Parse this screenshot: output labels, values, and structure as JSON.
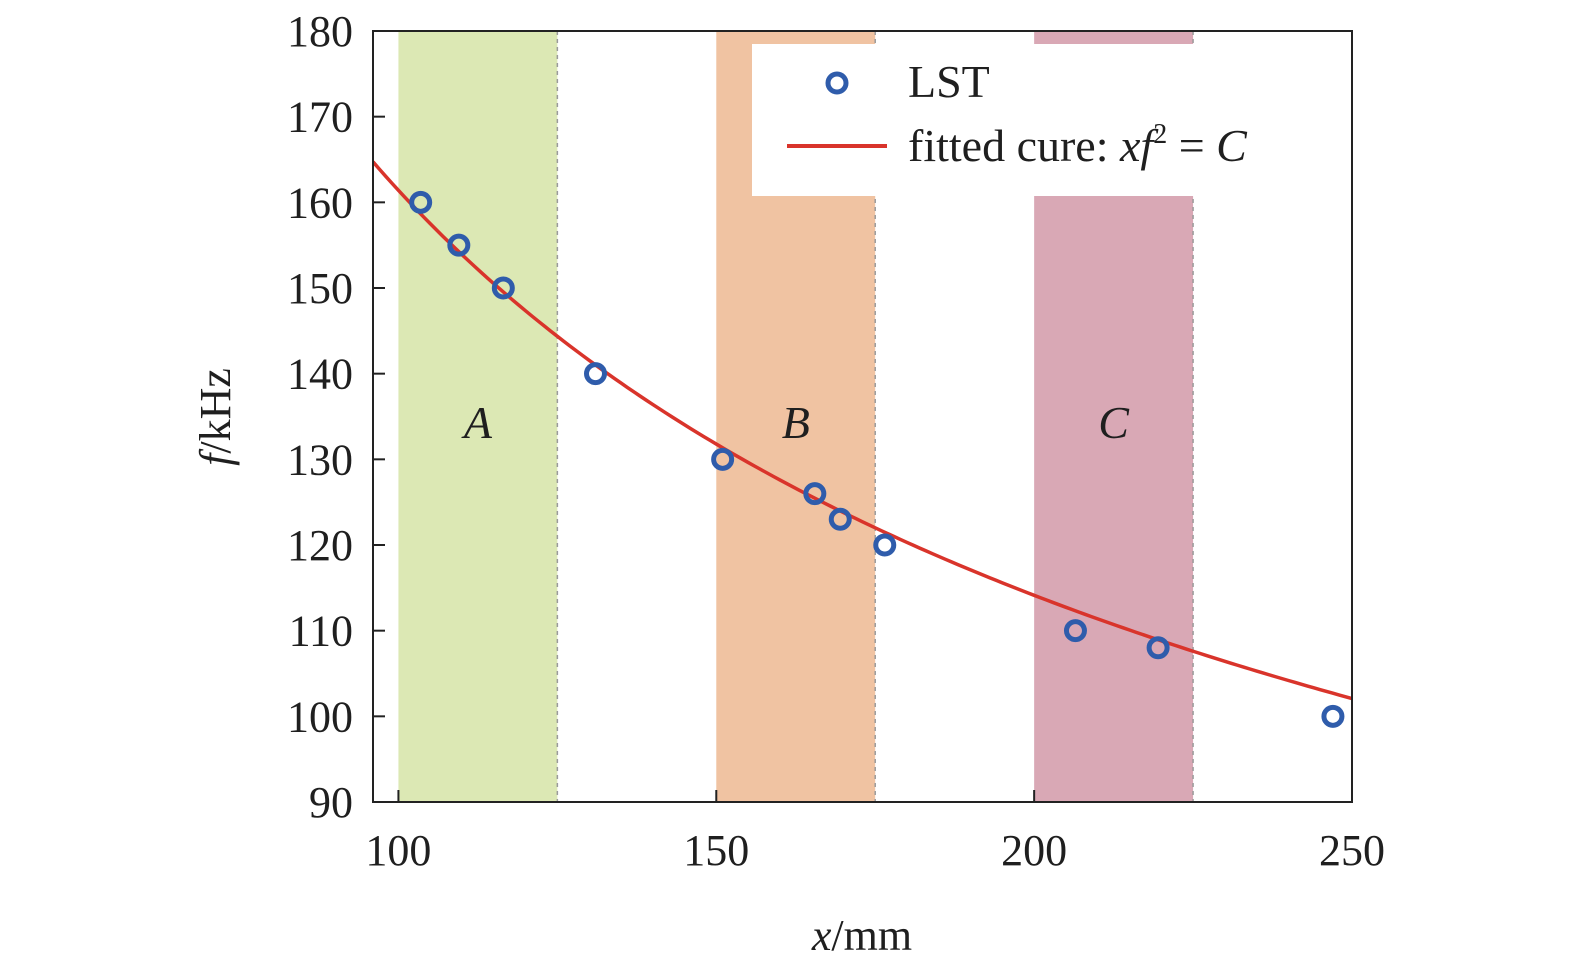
{
  "chart_data": {
    "type": "scatter",
    "xlabel_var": "x",
    "xlabel_unit": "/mm",
    "ylabel_var": "f",
    "ylabel_unit": "/kHz",
    "xlim": [
      96,
      250
    ],
    "ylim": [
      90,
      180
    ],
    "x_ticks": [
      100,
      150,
      200,
      250
    ],
    "y_ticks": [
      90,
      100,
      110,
      120,
      130,
      140,
      150,
      160,
      170,
      180
    ],
    "grid": false,
    "legend_position": "top-right",
    "series": [
      {
        "name": "LST",
        "kind": "scatter",
        "marker": "hollow-circle",
        "color": "#2f5cab",
        "points": [
          {
            "x": 103.5,
            "y": 160
          },
          {
            "x": 109.5,
            "y": 155
          },
          {
            "x": 116.5,
            "y": 150
          },
          {
            "x": 131,
            "y": 140
          },
          {
            "x": 151,
            "y": 130
          },
          {
            "x": 165.5,
            "y": 126
          },
          {
            "x": 169.5,
            "y": 123
          },
          {
            "x": 176.5,
            "y": 120
          },
          {
            "x": 206.5,
            "y": 110
          },
          {
            "x": 219.5,
            "y": 108
          },
          {
            "x": 247,
            "y": 100
          }
        ]
      },
      {
        "name_prefix": "fitted cure: ",
        "name_var1": "xf",
        "name_sup": "2",
        "name_eq": " = ",
        "name_var2": "C",
        "kind": "line",
        "color": "#d9342b",
        "model": "x*f^2 = C",
        "C": 2605000
      }
    ],
    "regions": [
      {
        "label": "A",
        "x_start": 100,
        "x_end": 125,
        "color": "#dce8b4"
      },
      {
        "label": "B",
        "x_start": 150,
        "x_end": 175,
        "color": "#f0c3a2"
      },
      {
        "label": "C",
        "x_start": 200,
        "x_end": 225,
        "color": "#d9a8b5"
      }
    ]
  }
}
